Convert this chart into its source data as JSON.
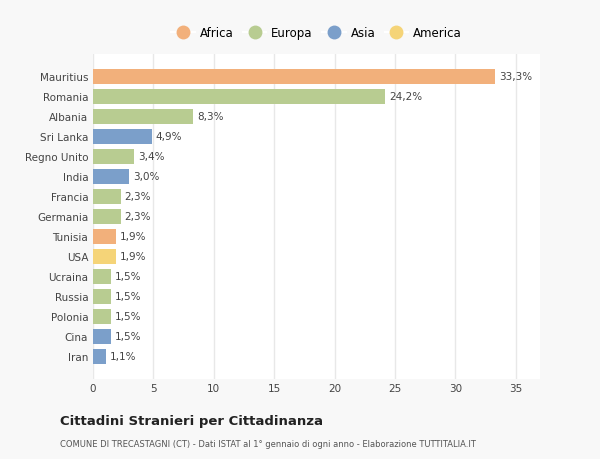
{
  "countries": [
    "Mauritius",
    "Romania",
    "Albania",
    "Sri Lanka",
    "Regno Unito",
    "India",
    "Francia",
    "Germania",
    "Tunisia",
    "USA",
    "Ucraina",
    "Russia",
    "Polonia",
    "Cina",
    "Iran"
  ],
  "values": [
    33.3,
    24.2,
    8.3,
    4.9,
    3.4,
    3.0,
    2.3,
    2.3,
    1.9,
    1.9,
    1.5,
    1.5,
    1.5,
    1.5,
    1.1
  ],
  "labels": [
    "33,3%",
    "24,2%",
    "8,3%",
    "4,9%",
    "3,4%",
    "3,0%",
    "2,3%",
    "2,3%",
    "1,9%",
    "1,9%",
    "1,5%",
    "1,5%",
    "1,5%",
    "1,5%",
    "1,1%"
  ],
  "continents": [
    "Africa",
    "Europa",
    "Europa",
    "Asia",
    "Europa",
    "Asia",
    "Europa",
    "Europa",
    "Africa",
    "America",
    "Europa",
    "Europa",
    "Europa",
    "Asia",
    "Asia"
  ],
  "colors": {
    "Africa": "#F2B07B",
    "Europa": "#B8CC91",
    "Asia": "#7B9FCA",
    "America": "#F5D478"
  },
  "legend_order": [
    "Africa",
    "Europa",
    "Asia",
    "America"
  ],
  "title": "Cittadini Stranieri per Cittadinanza",
  "subtitle": "COMUNE DI TRECASTAGNI (CT) - Dati ISTAT al 1° gennaio di ogni anno - Elaborazione TUTTITALIA.IT",
  "xlim": [
    0,
    37
  ],
  "xticks": [
    0,
    5,
    10,
    15,
    20,
    25,
    30,
    35
  ],
  "plot_bg_color": "#ffffff",
  "fig_bg_color": "#f8f8f8",
  "grid_color": "#e8e8e8"
}
